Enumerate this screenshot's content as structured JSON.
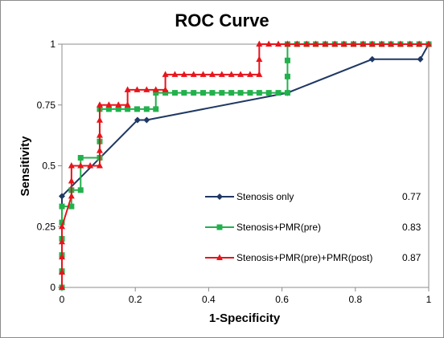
{
  "chart_data": {
    "type": "line",
    "title": "ROC Curve",
    "xlabel": "1-Specificity",
    "ylabel": "Sensitivity",
    "xlim": [
      0,
      1
    ],
    "ylim": [
      0,
      1
    ],
    "xticks": [
      "0",
      "0.2",
      "0.4",
      "0.6",
      "0.8",
      "1"
    ],
    "yticks": [
      "0",
      "0.25",
      "0.5",
      "0.75",
      "1"
    ],
    "grid": false,
    "legend_position": "bottom-right",
    "series": [
      {
        "name": "Stenosis only",
        "auc": "0.77",
        "color": "#1F3864",
        "marker": "diamond",
        "x": [
          0,
          0,
          0.206,
          0.231,
          0.615,
          0.846,
          0.977,
          1
        ],
        "y": [
          0,
          0.375,
          0.688,
          0.688,
          0.8,
          0.938,
          0.938,
          1
        ]
      },
      {
        "name": "Stenosis+PMR(pre)",
        "auc": "0.83",
        "color": "#22B14C",
        "marker": "square",
        "x": [
          0,
          0,
          0,
          0,
          0,
          0,
          0.026,
          0.026,
          0.051,
          0.051,
          0.103,
          0.103,
          0.103,
          0.128,
          0.154,
          0.179,
          0.205,
          0.231,
          0.256,
          0.256,
          0.282,
          0.308,
          0.333,
          0.359,
          0.385,
          0.41,
          0.436,
          0.462,
          0.487,
          0.513,
          0.538,
          0.564,
          0.59,
          0.615,
          0.615,
          0.615,
          0.615,
          0.641,
          0.667,
          0.692,
          0.718,
          0.744,
          0.769,
          0.795,
          0.821,
          0.846,
          0.872,
          0.897,
          0.923,
          0.949,
          0.974,
          1
        ],
        "y": [
          0,
          0.067,
          0.133,
          0.2,
          0.267,
          0.333,
          0.333,
          0.4,
          0.4,
          0.533,
          0.533,
          0.6,
          0.733,
          0.733,
          0.733,
          0.733,
          0.733,
          0.733,
          0.733,
          0.8,
          0.8,
          0.8,
          0.8,
          0.8,
          0.8,
          0.8,
          0.8,
          0.8,
          0.8,
          0.8,
          0.8,
          0.8,
          0.8,
          0.8,
          0.867,
          0.933,
          1,
          1,
          1,
          1,
          1,
          1,
          1,
          1,
          1,
          1,
          1,
          1,
          1,
          1,
          1,
          1
        ]
      },
      {
        "name": "Stenosis+PMR(pre)+PMR(post)",
        "auc": "0.87",
        "color": "#E8141B",
        "marker": "triangle",
        "x": [
          0,
          0,
          0,
          0,
          0,
          0.026,
          0.026,
          0.026,
          0.051,
          0.077,
          0.103,
          0.103,
          0.103,
          0.103,
          0.103,
          0.128,
          0.154,
          0.179,
          0.179,
          0.205,
          0.231,
          0.256,
          0.282,
          0.282,
          0.308,
          0.333,
          0.359,
          0.385,
          0.41,
          0.436,
          0.462,
          0.487,
          0.513,
          0.538,
          0.538,
          0.538,
          0.564,
          0.59,
          0.615,
          0.641,
          0.667,
          0.692,
          0.718,
          0.744,
          0.769,
          0.795,
          0.821,
          0.846,
          0.872,
          0.897,
          0.923,
          0.949,
          0.974,
          1
        ],
        "y": [
          0,
          0.0625,
          0.125,
          0.1875,
          0.25,
          0.375,
          0.4375,
          0.5,
          0.5,
          0.5,
          0.5,
          0.5625,
          0.625,
          0.6875,
          0.75,
          0.75,
          0.75,
          0.75,
          0.8125,
          0.8125,
          0.8125,
          0.8125,
          0.8125,
          0.875,
          0.875,
          0.875,
          0.875,
          0.875,
          0.875,
          0.875,
          0.875,
          0.875,
          0.875,
          0.875,
          0.9375,
          1,
          1,
          1,
          1,
          1,
          1,
          1,
          1,
          1,
          1,
          1,
          1,
          1,
          1,
          1,
          1,
          1,
          1,
          1
        ]
      }
    ]
  }
}
